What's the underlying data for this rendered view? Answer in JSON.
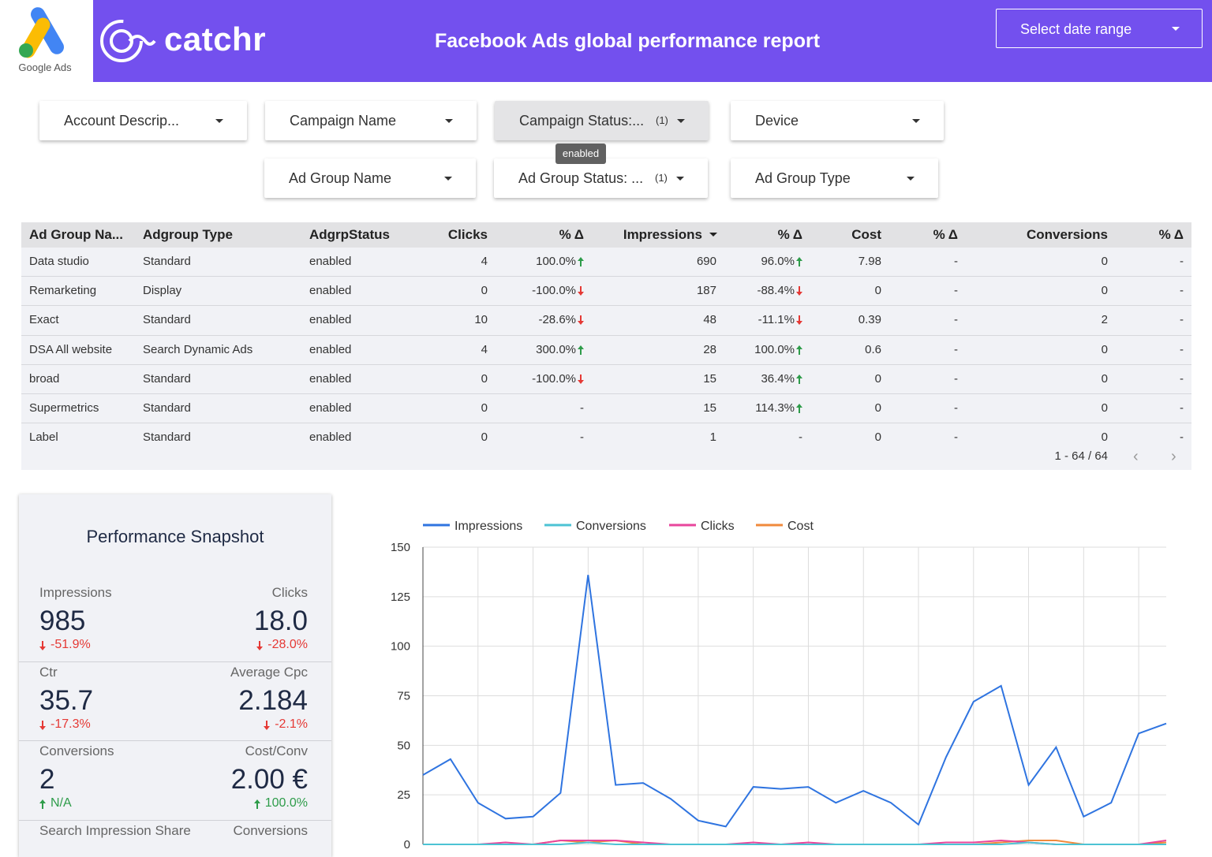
{
  "header": {
    "logo_label": "Google Ads",
    "brand": "catchr",
    "title": "Facebook Ads global performance report",
    "date_button": "Select date range"
  },
  "filters": [
    {
      "label": "Account Descrip..."
    },
    {
      "label": "Campaign Name"
    },
    {
      "label": "Campaign Status:...",
      "count": "(1)"
    },
    {
      "label": "Device"
    },
    {
      "label": "Ad Group Name"
    },
    {
      "label": "Ad Group Status: ...",
      "count": "(1)"
    },
    {
      "label": "Ad Group Type"
    }
  ],
  "tooltip": "enabled",
  "table": {
    "columns": [
      "Ad Group Na...",
      "Adgroup Type",
      "AdgrpStatus",
      "Clicks",
      "% Δ",
      "Impressions",
      "% Δ",
      "Cost",
      "% Δ",
      "Conversions",
      "% Δ"
    ],
    "sort_column": 5,
    "rows": [
      [
        "Data studio",
        "Standard",
        "enabled",
        "4",
        {
          "text": "100.0%",
          "trend": "up"
        },
        "690",
        {
          "text": "96.0%",
          "trend": "up"
        },
        "7.98",
        "-",
        "0",
        "-"
      ],
      [
        "Remarketing",
        "Display",
        "enabled",
        "0",
        {
          "text": "-100.0%",
          "trend": "down"
        },
        "187",
        {
          "text": "-88.4%",
          "trend": "down"
        },
        "0",
        "-",
        "0",
        "-"
      ],
      [
        "Exact",
        "Standard",
        "enabled",
        "10",
        {
          "text": "-28.6%",
          "trend": "down"
        },
        "48",
        {
          "text": "-11.1%",
          "trend": "down"
        },
        "0.39",
        "-",
        "2",
        "-"
      ],
      [
        "DSA All website",
        "Search Dynamic Ads",
        "enabled",
        "4",
        {
          "text": "300.0%",
          "trend": "up"
        },
        "28",
        {
          "text": "100.0%",
          "trend": "up"
        },
        "0.6",
        "-",
        "0",
        "-"
      ],
      [
        "broad",
        "Standard",
        "enabled",
        "0",
        {
          "text": "-100.0%",
          "trend": "down"
        },
        "15",
        {
          "text": "36.4%",
          "trend": "up"
        },
        "0",
        "-",
        "0",
        "-"
      ],
      [
        "Supermetrics",
        "Standard",
        "enabled",
        "0",
        "-",
        "15",
        {
          "text": "114.3%",
          "trend": "up"
        },
        "0",
        "-",
        "0",
        "-"
      ],
      [
        "Label",
        "Standard",
        "enabled",
        "0",
        "-",
        "1",
        "-",
        "0",
        "-",
        "0",
        "-"
      ]
    ],
    "pagination": "1 - 64 / 64"
  },
  "snapshot": {
    "title": "Performance Snapshot",
    "metrics": [
      {
        "label": "Impressions",
        "value": "985",
        "change": "-51.9%",
        "trend": "down"
      },
      {
        "label": "Clicks",
        "value": "18.0",
        "change": "-28.0%",
        "trend": "down"
      },
      {
        "label": "Ctr",
        "value": "35.7",
        "change": "-17.3%",
        "trend": "down"
      },
      {
        "label": "Average Cpc",
        "value": "2.184",
        "change": "-2.1%",
        "trend": "down"
      },
      {
        "label": "Conversions",
        "value": "2",
        "change": "N/A",
        "trend": "up"
      },
      {
        "label": "Cost/Conv",
        "value": "2.00 €",
        "change": "100.0%",
        "trend": "up"
      },
      {
        "label": "Search Impression Share"
      },
      {
        "label": "Conversions"
      }
    ]
  },
  "chart_data": {
    "type": "line",
    "categories": [
      null,
      null,
      null,
      null,
      null,
      null,
      null,
      null,
      null,
      null,
      null,
      null,
      null,
      null,
      null,
      null,
      null,
      null,
      null,
      null,
      null,
      null,
      null,
      null,
      null,
      null,
      null,
      null
    ],
    "series": [
      {
        "name": "Impressions",
        "color": "#2f74e0",
        "values": [
          35,
          43,
          21,
          13,
          14,
          26,
          136,
          30,
          31,
          23,
          12,
          9,
          29,
          28,
          29,
          21,
          27,
          21,
          10,
          44,
          72,
          80,
          30,
          49,
          14,
          21,
          56,
          61
        ]
      },
      {
        "name": "Conversions",
        "color": "#4cc3d4",
        "values": [
          0,
          0,
          0,
          0,
          0,
          0,
          1,
          0,
          0,
          0,
          0,
          0,
          0,
          0,
          0,
          0,
          0,
          0,
          0,
          0,
          0,
          0,
          1,
          0,
          0,
          0,
          0,
          0
        ]
      },
      {
        "name": "Clicks",
        "color": "#e8469c",
        "values": [
          0,
          0,
          0,
          1,
          0,
          2,
          2,
          2,
          1,
          0,
          0,
          0,
          1,
          0,
          1,
          0,
          0,
          0,
          0,
          1,
          1,
          2,
          1,
          0,
          0,
          0,
          0,
          2
        ]
      },
      {
        "name": "Cost",
        "color": "#f08a3c",
        "values": [
          0,
          0,
          0,
          0,
          0,
          2,
          1,
          2,
          0,
          0,
          0,
          0,
          0,
          0,
          0,
          0,
          0,
          0,
          0,
          0,
          0,
          1,
          2,
          2,
          0,
          0,
          0,
          1
        ]
      }
    ],
    "ylim": [
      0,
      150
    ],
    "yticks": [
      0,
      25,
      50,
      75,
      100,
      125,
      150
    ],
    "grid": true
  }
}
